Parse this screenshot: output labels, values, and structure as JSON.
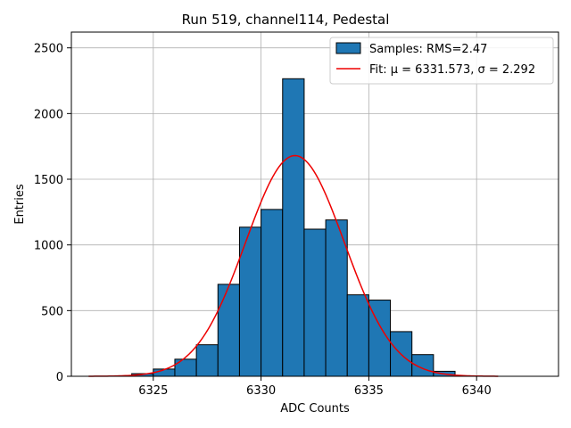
{
  "chart_data": {
    "type": "bar",
    "title": "Run 519, channel114, Pedestal",
    "xlabel": "ADC Counts",
    "ylabel": "Entries",
    "xlim": [
      6321.2,
      6343.8
    ],
    "ylim": [
      0,
      2620
    ],
    "xticks": [
      6325,
      6330,
      6335,
      6340
    ],
    "yticks": [
      0,
      500,
      1000,
      1500,
      2000,
      2500
    ],
    "grid": true,
    "legend_position": "top-right",
    "colors": {
      "bars": "#1f77b4",
      "bar_edge": "#000000",
      "fit": "#ee0000",
      "grid": "#b0b0b0"
    },
    "histogram": {
      "name": "Samples: RMS=2.47",
      "bin_width": 1,
      "bins": [
        {
          "x0": 6324,
          "count": 20
        },
        {
          "x0": 6325,
          "count": 55
        },
        {
          "x0": 6326,
          "count": 130
        },
        {
          "x0": 6327,
          "count": 240
        },
        {
          "x0": 6328,
          "count": 700
        },
        {
          "x0": 6329,
          "count": 1135
        },
        {
          "x0": 6330,
          "count": 1270
        },
        {
          "x0": 6331,
          "count": 2265
        },
        {
          "x0": 6332,
          "count": 1120
        },
        {
          "x0": 6333,
          "count": 1190
        },
        {
          "x0": 6334,
          "count": 620
        },
        {
          "x0": 6335,
          "count": 580
        },
        {
          "x0": 6336,
          "count": 340
        },
        {
          "x0": 6337,
          "count": 165
        },
        {
          "x0": 6338,
          "count": 38
        }
      ]
    },
    "fit": {
      "name": "Fit: μ = 6331.573, σ = 2.292",
      "type": "gaussian",
      "mu": 6331.573,
      "sigma": 2.292,
      "amplitude": 1680,
      "x_range": [
        6322,
        6341
      ]
    }
  }
}
